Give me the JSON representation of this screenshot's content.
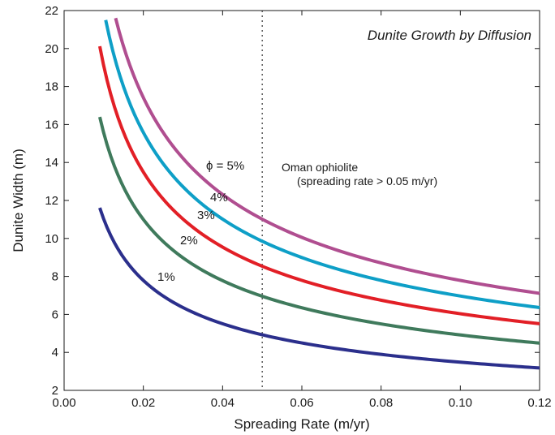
{
  "chart_data": {
    "type": "line",
    "title": "Dunite Growth by Diffusion",
    "xlabel": "Spreading Rate (m/yr)",
    "ylabel": "Dunite Width (m)",
    "xlim": [
      0,
      0.12
    ],
    "ylim": [
      2,
      22
    ],
    "xticks": [
      "0.00",
      "0.02",
      "0.04",
      "0.06",
      "0.08",
      "0.10",
      "0.12"
    ],
    "yticks": [
      "2",
      "4",
      "6",
      "8",
      "10",
      "12",
      "14",
      "16",
      "18",
      "20",
      "22"
    ],
    "grid": false,
    "reference_line": {
      "x": 0.05,
      "style": "dotted"
    },
    "annotation": {
      "line1": "Oman ophiolite",
      "line2": "(spreading rate > 0.05 m/yr)"
    },
    "series": [
      {
        "name": "1%",
        "label": "1%",
        "color": "#2b2f8c",
        "x": [
          0.009,
          0.012,
          0.015,
          0.02,
          0.025,
          0.03,
          0.04,
          0.05,
          0.06,
          0.08,
          0.1,
          0.12
        ],
        "y": [
          11.6,
          10.05,
          8.99,
          7.79,
          6.96,
          6.36,
          5.51,
          4.92,
          4.49,
          3.89,
          3.48,
          3.18
        ]
      },
      {
        "name": "2%",
        "label": "2%",
        "color": "#3f7a5c",
        "x": [
          0.009,
          0.012,
          0.015,
          0.02,
          0.025,
          0.03,
          0.04,
          0.05,
          0.06,
          0.08,
          0.1,
          0.12
        ],
        "y": [
          16.4,
          14.2,
          12.7,
          11.0,
          9.84,
          8.98,
          7.78,
          6.96,
          6.35,
          5.5,
          4.92,
          4.49
        ]
      },
      {
        "name": "3%",
        "label": "3%",
        "color": "#e21f26",
        "x": [
          0.009,
          0.012,
          0.015,
          0.02,
          0.025,
          0.03,
          0.04,
          0.05,
          0.06,
          0.08,
          0.1,
          0.12
        ],
        "y": [
          20.1,
          17.4,
          15.6,
          13.5,
          12.07,
          11.02,
          9.54,
          8.54,
          7.79,
          6.75,
          6.04,
          5.51
        ]
      },
      {
        "name": "4%",
        "label": "4%",
        "color": "#0e9fc7",
        "x": [
          0.0105,
          0.012,
          0.015,
          0.02,
          0.025,
          0.03,
          0.04,
          0.05,
          0.06,
          0.08,
          0.1,
          0.12
        ],
        "y": [
          21.5,
          20.1,
          18.0,
          15.6,
          13.94,
          12.73,
          11.02,
          9.86,
          9.0,
          7.79,
          6.97,
          6.36
        ]
      },
      {
        "name": "φ = 5%",
        "label": "ϕ = 5%",
        "color": "#b04e90",
        "x": [
          0.013,
          0.015,
          0.02,
          0.025,
          0.03,
          0.04,
          0.05,
          0.06,
          0.08,
          0.1,
          0.12
        ],
        "y": [
          21.6,
          20.1,
          17.4,
          15.57,
          14.22,
          12.31,
          11.01,
          10.05,
          8.71,
          7.79,
          7.11
        ]
      }
    ]
  }
}
